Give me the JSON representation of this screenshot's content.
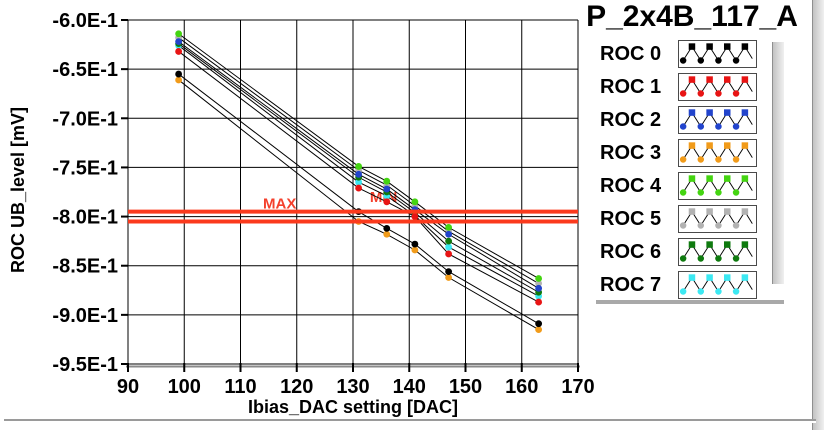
{
  "window": {
    "title": "P_2x4B_117_A"
  },
  "plot": {
    "y_axis_title": "ROC UB_level [mV]",
    "x_axis_title": "Ibias_DAC setting [DAC]",
    "colors": {
      "background": "#ffffff",
      "grid": "#000000",
      "axis_line": "#8a8a8a",
      "ref_line": "#fb3a1d",
      "ref_text": "#f4402c",
      "series_line": "#000000"
    }
  },
  "legend": {
    "items": [
      {
        "label": "ROC 0",
        "color": "#000000"
      },
      {
        "label": "ROC 1",
        "color": "#e81414"
      },
      {
        "label": "ROC 2",
        "color": "#2244cc"
      },
      {
        "label": "ROC 3",
        "color": "#f19b1a"
      },
      {
        "label": "ROC 4",
        "color": "#44d411"
      },
      {
        "label": "ROC 5",
        "color": "#b2b2b2"
      },
      {
        "label": "ROC 6",
        "color": "#0f7a0f"
      },
      {
        "label": "ROC 7",
        "color": "#3ce8f2"
      }
    ]
  },
  "chart_data": {
    "type": "line",
    "title": "P_2x4B_117_A",
    "xlabel": "Ibias_DAC setting [DAC]",
    "ylabel": "ROC UB_level [mV]",
    "xlim": [
      90,
      170
    ],
    "ylim": [
      -0.95,
      -0.6
    ],
    "grid": true,
    "legend_position": "right",
    "x_ticks": [
      90,
      100,
      110,
      120,
      130,
      140,
      150,
      160,
      170
    ],
    "y_ticks": [
      {
        "value": -0.6,
        "label": "-6.0E-1"
      },
      {
        "value": -0.65,
        "label": "-6.5E-1"
      },
      {
        "value": -0.7,
        "label": "-7.0E-1"
      },
      {
        "value": -0.75,
        "label": "-7.5E-1"
      },
      {
        "value": -0.8,
        "label": "-8.0E-1"
      },
      {
        "value": -0.85,
        "label": "-8.5E-1"
      },
      {
        "value": -0.9,
        "label": "-9.0E-1"
      },
      {
        "value": -0.95,
        "label": "-9.5E-1"
      }
    ],
    "ref_lines": [
      {
        "name": "max",
        "label": "MAX",
        "value": -0.795,
        "label_x": 114,
        "label_y": -0.792
      },
      {
        "name": "min",
        "label": "MIN",
        "value": -0.805,
        "label_x": 133,
        "label_y": -0.785
      }
    ],
    "x": [
      99,
      131,
      136,
      141,
      147,
      163
    ],
    "series": [
      {
        "name": "ROC 0",
        "color": "#000000",
        "values": [
          -0.655,
          -0.795,
          -0.812,
          -0.828,
          -0.856,
          -0.909
        ]
      },
      {
        "name": "ROC 1",
        "color": "#e81414",
        "values": [
          -0.632,
          -0.771,
          -0.785,
          -0.8,
          -0.838,
          -0.887
        ]
      },
      {
        "name": "ROC 2",
        "color": "#2244cc",
        "values": [
          -0.622,
          -0.757,
          -0.772,
          -0.793,
          -0.818,
          -0.873
        ]
      },
      {
        "name": "ROC 3",
        "color": "#f19b1a",
        "values": [
          -0.661,
          -0.805,
          -0.818,
          -0.834,
          -0.862,
          -0.915
        ]
      },
      {
        "name": "ROC 4",
        "color": "#44d411",
        "values": [
          -0.614,
          -0.749,
          -0.764,
          -0.785,
          -0.811,
          -0.863
        ]
      },
      {
        "name": "ROC 5",
        "color": "#b2b2b2",
        "values": [
          -0.618,
          -0.753,
          -0.768,
          -0.789,
          -0.815,
          -0.868
        ]
      },
      {
        "name": "ROC 6",
        "color": "#0f7a0f",
        "values": [
          -0.624,
          -0.76,
          -0.775,
          -0.796,
          -0.825,
          -0.877
        ]
      },
      {
        "name": "ROC 7",
        "color": "#3ce8f2",
        "values": [
          -0.626,
          -0.765,
          -0.779,
          -0.799,
          -0.831,
          -0.881
        ]
      }
    ]
  }
}
